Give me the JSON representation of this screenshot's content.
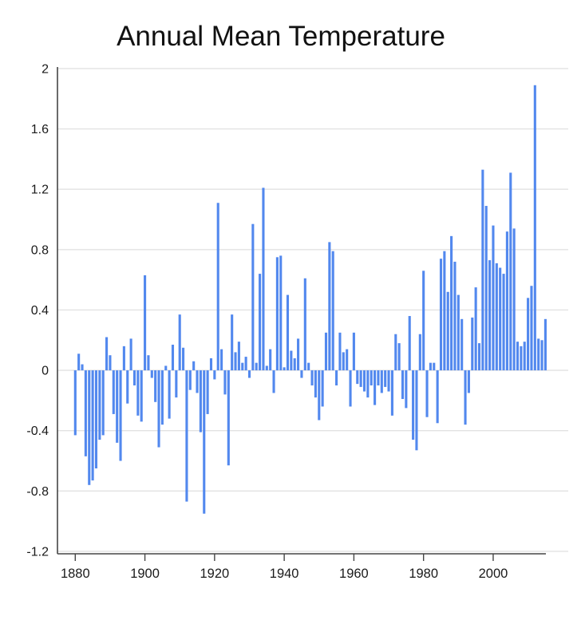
{
  "chart_data": {
    "type": "bar",
    "title": "Annual Mean Temperature",
    "xlabel": "",
    "ylabel": "",
    "ylim": [
      -1.2,
      2.0
    ],
    "ytick_step": 0.4,
    "ytick_labels": [
      "2",
      "1.6",
      "1.2",
      "0.8",
      "0.4",
      "0",
      "-0.4",
      "-0.8",
      "-1.2"
    ],
    "xtick_labels": [
      "1880",
      "1900",
      "1920",
      "1940",
      "1960",
      "1980",
      "2000"
    ],
    "xticks": [
      1880,
      1900,
      1920,
      1940,
      1960,
      1980,
      2000
    ],
    "grid": "horizontal",
    "legend": "none",
    "years": [
      1880,
      1881,
      1882,
      1883,
      1884,
      1885,
      1886,
      1887,
      1888,
      1889,
      1890,
      1891,
      1892,
      1893,
      1894,
      1895,
      1896,
      1897,
      1898,
      1899,
      1900,
      1901,
      1902,
      1903,
      1904,
      1905,
      1906,
      1907,
      1908,
      1909,
      1910,
      1911,
      1912,
      1913,
      1914,
      1915,
      1916,
      1917,
      1918,
      1919,
      1920,
      1921,
      1922,
      1923,
      1924,
      1925,
      1926,
      1927,
      1928,
      1929,
      1930,
      1931,
      1932,
      1933,
      1934,
      1935,
      1936,
      1937,
      1938,
      1939,
      1940,
      1941,
      1942,
      1943,
      1944,
      1945,
      1946,
      1947,
      1948,
      1949,
      1950,
      1951,
      1952,
      1953,
      1954,
      1955,
      1956,
      1957,
      1958,
      1959,
      1960,
      1961,
      1962,
      1963,
      1964,
      1965,
      1966,
      1967,
      1968,
      1969,
      1970,
      1971,
      1972,
      1973,
      1974,
      1975,
      1976,
      1977,
      1978,
      1979,
      1980,
      1981,
      1982,
      1983,
      1984,
      1985,
      1986,
      1987,
      1988,
      1989,
      1990,
      1991,
      1992,
      1993,
      1994,
      1995,
      1996,
      1997,
      1998,
      1999,
      2000,
      2001,
      2002,
      2003,
      2004,
      2005,
      2006,
      2007,
      2008,
      2009,
      2010,
      2011,
      2012,
      2013,
      2014,
      2015
    ],
    "values": [
      -0.43,
      0.11,
      0.04,
      -0.57,
      -0.76,
      -0.73,
      -0.65,
      -0.46,
      -0.43,
      0.22,
      0.1,
      -0.29,
      -0.48,
      -0.6,
      0.16,
      -0.22,
      0.21,
      -0.1,
      -0.3,
      -0.34,
      0.63,
      0.1,
      -0.05,
      -0.21,
      -0.51,
      -0.36,
      0.03,
      -0.32,
      0.17,
      -0.18,
      0.37,
      0.15,
      -0.87,
      -0.13,
      0.06,
      -0.15,
      -0.41,
      -0.95,
      -0.29,
      0.08,
      -0.06,
      1.11,
      0.14,
      -0.16,
      -0.63,
      0.37,
      0.12,
      0.19,
      0.05,
      0.09,
      -0.05,
      0.97,
      0.05,
      0.64,
      1.21,
      0.03,
      0.14,
      -0.15,
      0.75,
      0.76,
      0.02,
      0.5,
      0.13,
      0.08,
      0.21,
      -0.05,
      0.61,
      0.05,
      -0.1,
      -0.18,
      -0.33,
      -0.24,
      0.25,
      0.85,
      0.79,
      -0.1,
      0.25,
      0.12,
      0.14,
      -0.24,
      0.25,
      -0.09,
      -0.11,
      -0.14,
      -0.18,
      -0.1,
      -0.23,
      -0.1,
      -0.15,
      -0.11,
      -0.14,
      -0.3,
      0.24,
      0.18,
      -0.19,
      -0.25,
      0.36,
      -0.46,
      -0.53,
      0.24,
      0.66,
      -0.31,
      0.05,
      0.05,
      -0.35,
      0.74,
      0.79,
      0.52,
      0.89,
      0.72,
      0.5,
      0.34,
      -0.36,
      -0.15,
      0.35,
      0.55,
      0.18,
      1.33,
      1.09,
      0.73,
      0.96,
      0.71,
      0.68,
      0.64,
      0.92,
      1.31,
      0.94,
      0.19,
      0.16,
      0.19,
      0.48,
      0.56,
      1.89,
      0.21,
      0.2,
      0.34
    ]
  },
  "colors": {
    "bar": "#5288ee",
    "grid": "#e2e2e2",
    "axis": "#454545",
    "text": "#1a1a1a",
    "background": "#ffffff"
  }
}
